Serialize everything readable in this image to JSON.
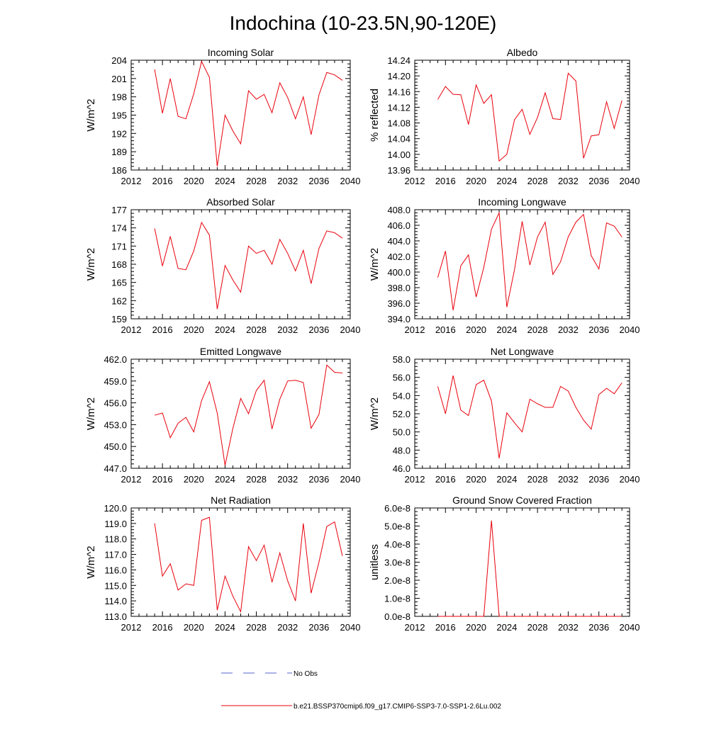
{
  "page": {
    "title": "Indochina (10-23.5N,90-120E)"
  },
  "legend": {
    "items": [
      {
        "label": "No Obs",
        "color": "#5566cc",
        "style": "dashed"
      },
      {
        "label": "b.e21.BSSP370cmip6.f09_g17.CMIP6-SSP3-7.0-SSP1-2.6Lu.002",
        "color": "#e8000b",
        "style": "solid"
      }
    ]
  },
  "chart_data": [
    {
      "type": "line",
      "title": "Incoming Solar",
      "ylabel": "W/m^2",
      "xlim": [
        2012,
        2040
      ],
      "xticks": [
        2012,
        2016,
        2020,
        2024,
        2028,
        2032,
        2036,
        2040
      ],
      "ylim": [
        186,
        204
      ],
      "yticks": [
        186,
        189,
        192,
        195,
        198,
        201,
        204
      ],
      "ytick_labels": [
        "186",
        "189",
        "192",
        "195",
        "198",
        "201",
        "204"
      ],
      "x": [
        2015,
        2016,
        2017,
        2018,
        2019,
        2020,
        2021,
        2022,
        2023,
        2024,
        2025,
        2026,
        2027,
        2028,
        2029,
        2030,
        2031,
        2032,
        2033,
        2034,
        2035,
        2036,
        2037,
        2038,
        2039
      ],
      "series": [
        {
          "values": [
            202.5,
            195.3,
            201.0,
            194.8,
            194.4,
            198.5,
            203.8,
            201.2,
            186.6,
            195.0,
            192.4,
            190.3,
            199.0,
            197.6,
            198.4,
            195.4,
            200.3,
            197.9,
            194.4,
            198.0,
            191.8,
            198.3,
            202.0,
            201.6,
            200.7
          ]
        }
      ]
    },
    {
      "type": "line",
      "title": "Albedo",
      "ylabel": "% reflected",
      "xlim": [
        2012,
        2040
      ],
      "xticks": [
        2012,
        2016,
        2020,
        2024,
        2028,
        2032,
        2036,
        2040
      ],
      "ylim": [
        13.96,
        14.24
      ],
      "yticks": [
        13.96,
        14.0,
        14.04,
        14.08,
        14.12,
        14.16,
        14.2,
        14.24
      ],
      "ytick_labels": [
        "13.96",
        "14.00",
        "14.04",
        "14.08",
        "14.12",
        "14.16",
        "14.20",
        "14.24"
      ],
      "x": [
        2015,
        2016,
        2017,
        2018,
        2019,
        2020,
        2021,
        2022,
        2023,
        2024,
        2025,
        2026,
        2027,
        2028,
        2029,
        2030,
        2031,
        2032,
        2033,
        2034,
        2035,
        2036,
        2037,
        2038,
        2039
      ],
      "series": [
        {
          "values": [
            14.14,
            14.173,
            14.153,
            14.152,
            14.076,
            14.177,
            14.13,
            14.152,
            13.983,
            14.0,
            14.088,
            14.115,
            14.051,
            14.094,
            14.157,
            14.091,
            14.089,
            14.207,
            14.187,
            13.99,
            14.047,
            14.05,
            14.134,
            14.066,
            14.137
          ]
        }
      ]
    },
    {
      "type": "line",
      "title": "Absorbed Solar",
      "ylabel": "W/m^2",
      "xlim": [
        2012,
        2040
      ],
      "xticks": [
        2012,
        2016,
        2020,
        2024,
        2028,
        2032,
        2036,
        2040
      ],
      "ylim": [
        159,
        177
      ],
      "yticks": [
        159,
        162,
        165,
        168,
        171,
        174,
        177
      ],
      "ytick_labels": [
        "159",
        "162",
        "165",
        "168",
        "171",
        "174",
        "177"
      ],
      "x": [
        2015,
        2016,
        2017,
        2018,
        2019,
        2020,
        2021,
        2022,
        2023,
        2024,
        2025,
        2026,
        2027,
        2028,
        2029,
        2030,
        2031,
        2032,
        2033,
        2034,
        2035,
        2036,
        2037,
        2038,
        2039
      ],
      "series": [
        {
          "values": [
            173.9,
            167.7,
            172.6,
            167.3,
            167.1,
            170.2,
            174.9,
            172.8,
            160.6,
            167.8,
            165.4,
            163.4,
            171.0,
            169.8,
            170.3,
            168.0,
            172.1,
            169.8,
            166.9,
            170.3,
            164.8,
            170.6,
            173.5,
            173.2,
            172.3
          ]
        }
      ]
    },
    {
      "type": "line",
      "title": "Incoming Longwave",
      "ylabel": "W/m^2",
      "xlim": [
        2012,
        2040
      ],
      "xticks": [
        2012,
        2016,
        2020,
        2024,
        2028,
        2032,
        2036,
        2040
      ],
      "ylim": [
        394,
        408
      ],
      "yticks": [
        394,
        396,
        398,
        400,
        402,
        404,
        406,
        408
      ],
      "ytick_labels": [
        "394.0",
        "396.0",
        "398.0",
        "400.0",
        "402.0",
        "404.0",
        "406.0",
        "408.0"
      ],
      "x": [
        2015,
        2016,
        2017,
        2018,
        2019,
        2020,
        2021,
        2022,
        2023,
        2024,
        2025,
        2026,
        2027,
        2028,
        2029,
        2030,
        2031,
        2032,
        2033,
        2034,
        2035,
        2036,
        2037,
        2038,
        2039
      ],
      "series": [
        {
          "values": [
            399.3,
            402.7,
            395.1,
            400.8,
            402.2,
            396.8,
            400.6,
            405.5,
            407.6,
            395.5,
            400.3,
            406.5,
            400.9,
            404.5,
            406.4,
            399.7,
            401.3,
            404.5,
            406.4,
            407.4,
            402.1,
            400.4,
            406.3,
            405.9,
            404.5
          ]
        }
      ]
    },
    {
      "type": "line",
      "title": "Emitted Longwave",
      "ylabel": "W/m^2",
      "xlim": [
        2012,
        2040
      ],
      "xticks": [
        2012,
        2016,
        2020,
        2024,
        2028,
        2032,
        2036,
        2040
      ],
      "ylim": [
        447,
        462
      ],
      "yticks": [
        447,
        450,
        453,
        456,
        459,
        462
      ],
      "ytick_labels": [
        "447.0",
        "450.0",
        "453.0",
        "456.0",
        "459.0",
        "462.0"
      ],
      "x": [
        2015,
        2016,
        2017,
        2018,
        2019,
        2020,
        2021,
        2022,
        2023,
        2024,
        2025,
        2026,
        2027,
        2028,
        2029,
        2030,
        2031,
        2032,
        2033,
        2034,
        2035,
        2036,
        2037,
        2038,
        2039
      ],
      "series": [
        {
          "values": [
            454.3,
            454.6,
            451.2,
            453.2,
            454.0,
            452.0,
            456.3,
            458.9,
            454.6,
            447.4,
            452.5,
            456.6,
            454.5,
            457.7,
            459.1,
            452.4,
            456.5,
            459.0,
            459.1,
            458.8,
            452.5,
            454.4,
            461.2,
            460.2,
            460.1
          ]
        }
      ]
    },
    {
      "type": "line",
      "title": "Net Longwave",
      "ylabel": "W/m^2",
      "xlim": [
        2012,
        2040
      ],
      "xticks": [
        2012,
        2016,
        2020,
        2024,
        2028,
        2032,
        2036,
        2040
      ],
      "ylim": [
        46,
        58
      ],
      "yticks": [
        46,
        48,
        50,
        52,
        54,
        56,
        58
      ],
      "ytick_labels": [
        "46.0",
        "48.0",
        "50.0",
        "52.0",
        "54.0",
        "56.0",
        "58.0"
      ],
      "x": [
        2015,
        2016,
        2017,
        2018,
        2019,
        2020,
        2021,
        2022,
        2023,
        2024,
        2025,
        2026,
        2027,
        2028,
        2029,
        2030,
        2031,
        2032,
        2033,
        2034,
        2035,
        2036,
        2037,
        2038,
        2039
      ],
      "series": [
        {
          "values": [
            55.0,
            52.0,
            56.2,
            52.4,
            51.8,
            55.2,
            55.7,
            53.4,
            47.1,
            52.1,
            51.0,
            50.0,
            53.6,
            53.1,
            52.7,
            52.7,
            55.0,
            54.5,
            52.7,
            51.3,
            50.3,
            54.1,
            54.8,
            54.2,
            55.4
          ]
        }
      ]
    },
    {
      "type": "line",
      "title": "Net Radiation",
      "ylabel": "W/m^2",
      "xlim": [
        2012,
        2040
      ],
      "xticks": [
        2012,
        2016,
        2020,
        2024,
        2028,
        2032,
        2036,
        2040
      ],
      "ylim": [
        113,
        120
      ],
      "yticks": [
        113,
        114,
        115,
        116,
        117,
        118,
        119,
        120
      ],
      "ytick_labels": [
        "113.0",
        "114.0",
        "115.0",
        "116.0",
        "117.0",
        "118.0",
        "119.0",
        "120.0"
      ],
      "x": [
        2015,
        2016,
        2017,
        2018,
        2019,
        2020,
        2021,
        2022,
        2023,
        2024,
        2025,
        2026,
        2027,
        2028,
        2029,
        2030,
        2031,
        2032,
        2033,
        2034,
        2035,
        2036,
        2037,
        2038,
        2039
      ],
      "series": [
        {
          "values": [
            119.0,
            115.6,
            116.4,
            114.7,
            115.1,
            115.0,
            119.2,
            119.4,
            113.4,
            115.6,
            114.3,
            113.3,
            117.5,
            116.6,
            117.6,
            115.2,
            117.1,
            115.3,
            114.0,
            119.0,
            114.5,
            116.5,
            118.8,
            119.1,
            116.9
          ]
        }
      ]
    },
    {
      "type": "line",
      "title": "Ground Snow Covered Fraction",
      "ylabel": "unitless",
      "xlim": [
        2012,
        2040
      ],
      "xticks": [
        2012,
        2016,
        2020,
        2024,
        2028,
        2032,
        2036,
        2040
      ],
      "ylim": [
        0,
        6e-08
      ],
      "yticks": [
        0,
        1e-08,
        2e-08,
        3e-08,
        4e-08,
        5e-08,
        6e-08
      ],
      "ytick_labels": [
        "0.0e-8",
        "1.0e-8",
        "2.0e-8",
        "3.0e-8",
        "4.0e-8",
        "5.0e-8",
        "6.0e-8"
      ],
      "x": [
        2015,
        2016,
        2017,
        2018,
        2019,
        2020,
        2021,
        2022,
        2023,
        2024,
        2025,
        2026,
        2027,
        2028,
        2029,
        2030,
        2031,
        2032,
        2033,
        2034,
        2035,
        2036,
        2037,
        2038,
        2039
      ],
      "series": [
        {
          "values": [
            0,
            0,
            0,
            0,
            0,
            0,
            0,
            5.3e-08,
            0,
            0,
            0,
            0,
            0,
            0,
            0,
            0,
            0,
            0,
            0,
            0,
            0,
            0,
            0,
            0,
            0
          ]
        }
      ]
    }
  ]
}
